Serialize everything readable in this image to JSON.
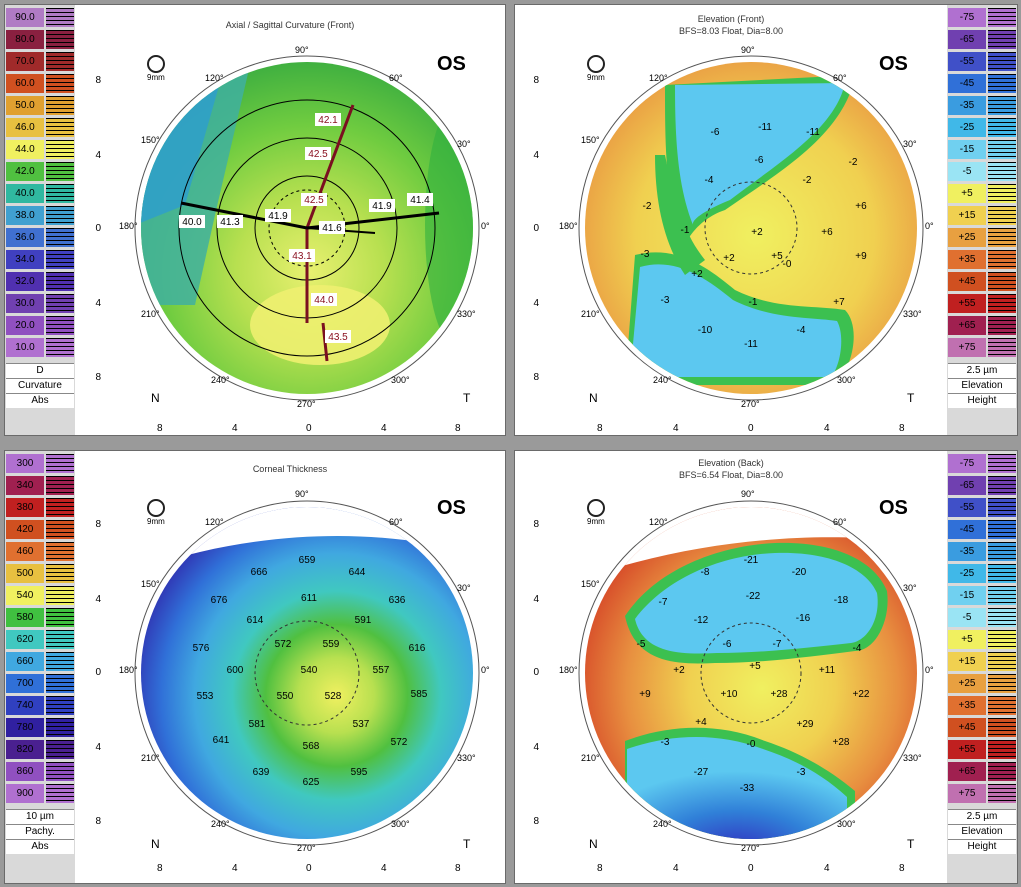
{
  "panels": {
    "axial": {
      "title": "Axial / Sagittal Curvature (Front)",
      "eye": "OS",
      "scale_values": [
        "90.0",
        "80.0",
        "70.0",
        "60.0",
        "50.0",
        "46.0",
        "44.0",
        "42.0",
        "40.0",
        "38.0",
        "36.0",
        "34.0",
        "32.0",
        "30.0",
        "20.0",
        "10.0"
      ],
      "scale_colors": [
        "#b07bc4",
        "#8a2040",
        "#a02a2a",
        "#d05020",
        "#e0a030",
        "#e8c040",
        "#f0f060",
        "#50c040",
        "#30b8a0",
        "#40a0d0",
        "#4070d0",
        "#4040c0",
        "#5030b0",
        "#7040b0",
        "#9050c0",
        "#b070d0"
      ],
      "footer": [
        "D",
        "Curvature",
        "Abs"
      ],
      "values": [
        "42.1",
        "42.5",
        "42.5",
        "40.0",
        "41.3",
        "41.9",
        "41.6",
        "41.9",
        "41.4",
        "43.1",
        "44.0",
        "43.5"
      ],
      "zoom_label": "9mm"
    },
    "elev_front": {
      "title": "Elevation (Front)",
      "subtitle": "BFS=8.03 Float, Dia=8.00",
      "eye": "OS",
      "scale_values": [
        "-75",
        "-65",
        "-55",
        "-45",
        "-35",
        "-25",
        "-15",
        "-5",
        "+5",
        "+15",
        "+25",
        "+35",
        "+45",
        "+55",
        "+65",
        "+75"
      ],
      "scale_colors": [
        "#b070d0",
        "#7040b0",
        "#4050c8",
        "#3070d8",
        "#3a9ce0",
        "#40b8e8",
        "#70d0f0",
        "#9ae4f4",
        "#f0f060",
        "#f0d050",
        "#e8a040",
        "#e07030",
        "#d05020",
        "#c02020",
        "#a02050",
        "#c070b0"
      ],
      "footer": [
        "2.5 µm",
        "Elevation",
        "Height"
      ],
      "values": [
        "-11",
        "-11",
        "-6",
        "-6",
        "-4",
        "-2",
        "-2",
        "-2",
        "+6",
        "+2",
        "+6",
        "-1",
        "-3",
        "+2",
        "+5",
        "-0",
        "+9",
        "+2",
        "-1",
        "+7",
        "-3",
        "-10",
        "-4",
        "-11"
      ],
      "zoom_label": "9mm"
    },
    "thickness": {
      "title": "Corneal Thickness",
      "eye": "OS",
      "scale_values": [
        "300",
        "340",
        "380",
        "420",
        "460",
        "500",
        "540",
        "580",
        "620",
        "660",
        "700",
        "740",
        "780",
        "820",
        "860",
        "900"
      ],
      "scale_colors": [
        "#b070d0",
        "#a02050",
        "#c02020",
        "#d05020",
        "#e07030",
        "#e8c040",
        "#f0f060",
        "#40c040",
        "#40c8c0",
        "#40a8e0",
        "#3070d8",
        "#3040c0",
        "#3020a0",
        "#4a2090",
        "#9050c0",
        "#b070d0"
      ],
      "footer": [
        "10 µm",
        "Pachy.",
        "Abs"
      ],
      "values": [
        "659",
        "666",
        "644",
        "676",
        "611",
        "636",
        "614",
        "591",
        "572",
        "559",
        "576",
        "600",
        "540",
        "557",
        "616",
        "553",
        "550",
        "528",
        "585",
        "581",
        "537",
        "641",
        "568",
        "572",
        "639",
        "625",
        "595"
      ],
      "zoom_label": "9mm"
    },
    "elev_back": {
      "title": "Elevation (Back)",
      "subtitle": "BFS=6.54 Float, Dia=8.00",
      "eye": "OS",
      "scale_values": [
        "-75",
        "-65",
        "-55",
        "-45",
        "-35",
        "-25",
        "-15",
        "-5",
        "+5",
        "+15",
        "+25",
        "+35",
        "+45",
        "+55",
        "+65",
        "+75"
      ],
      "scale_colors": [
        "#b070d0",
        "#7040b0",
        "#4050c8",
        "#3070d8",
        "#3a9ce0",
        "#40b8e8",
        "#70d0f0",
        "#9ae4f4",
        "#f0f060",
        "#f0d050",
        "#e8a040",
        "#e07030",
        "#d05020",
        "#c02020",
        "#a02050",
        "#c070b0"
      ],
      "footer": [
        "2.5 µm",
        "Elevation",
        "Height"
      ],
      "values": [
        "-21",
        "-20",
        "-8",
        "-22",
        "-18",
        "-7",
        "-12",
        "-16",
        "-5",
        "-6",
        "-7",
        "-4",
        "+2",
        "+5",
        "+11",
        "+9",
        "+10",
        "+28",
        "+22",
        "+4",
        "+29",
        "-0",
        "+28",
        "-3",
        "-27",
        "-3",
        "-33"
      ],
      "zoom_label": "9mm"
    }
  },
  "axis": {
    "y_ticks": [
      "8",
      "4",
      "0",
      "4",
      "8"
    ],
    "x_ticks": [
      "8",
      "4",
      "0",
      "4",
      "8"
    ],
    "nasal": "N",
    "temporal": "T",
    "degrees": [
      "90°",
      "60°",
      "30°",
      "0°",
      "330°",
      "300°",
      "270°",
      "240°",
      "210°",
      "180°",
      "150°",
      "120°"
    ]
  }
}
